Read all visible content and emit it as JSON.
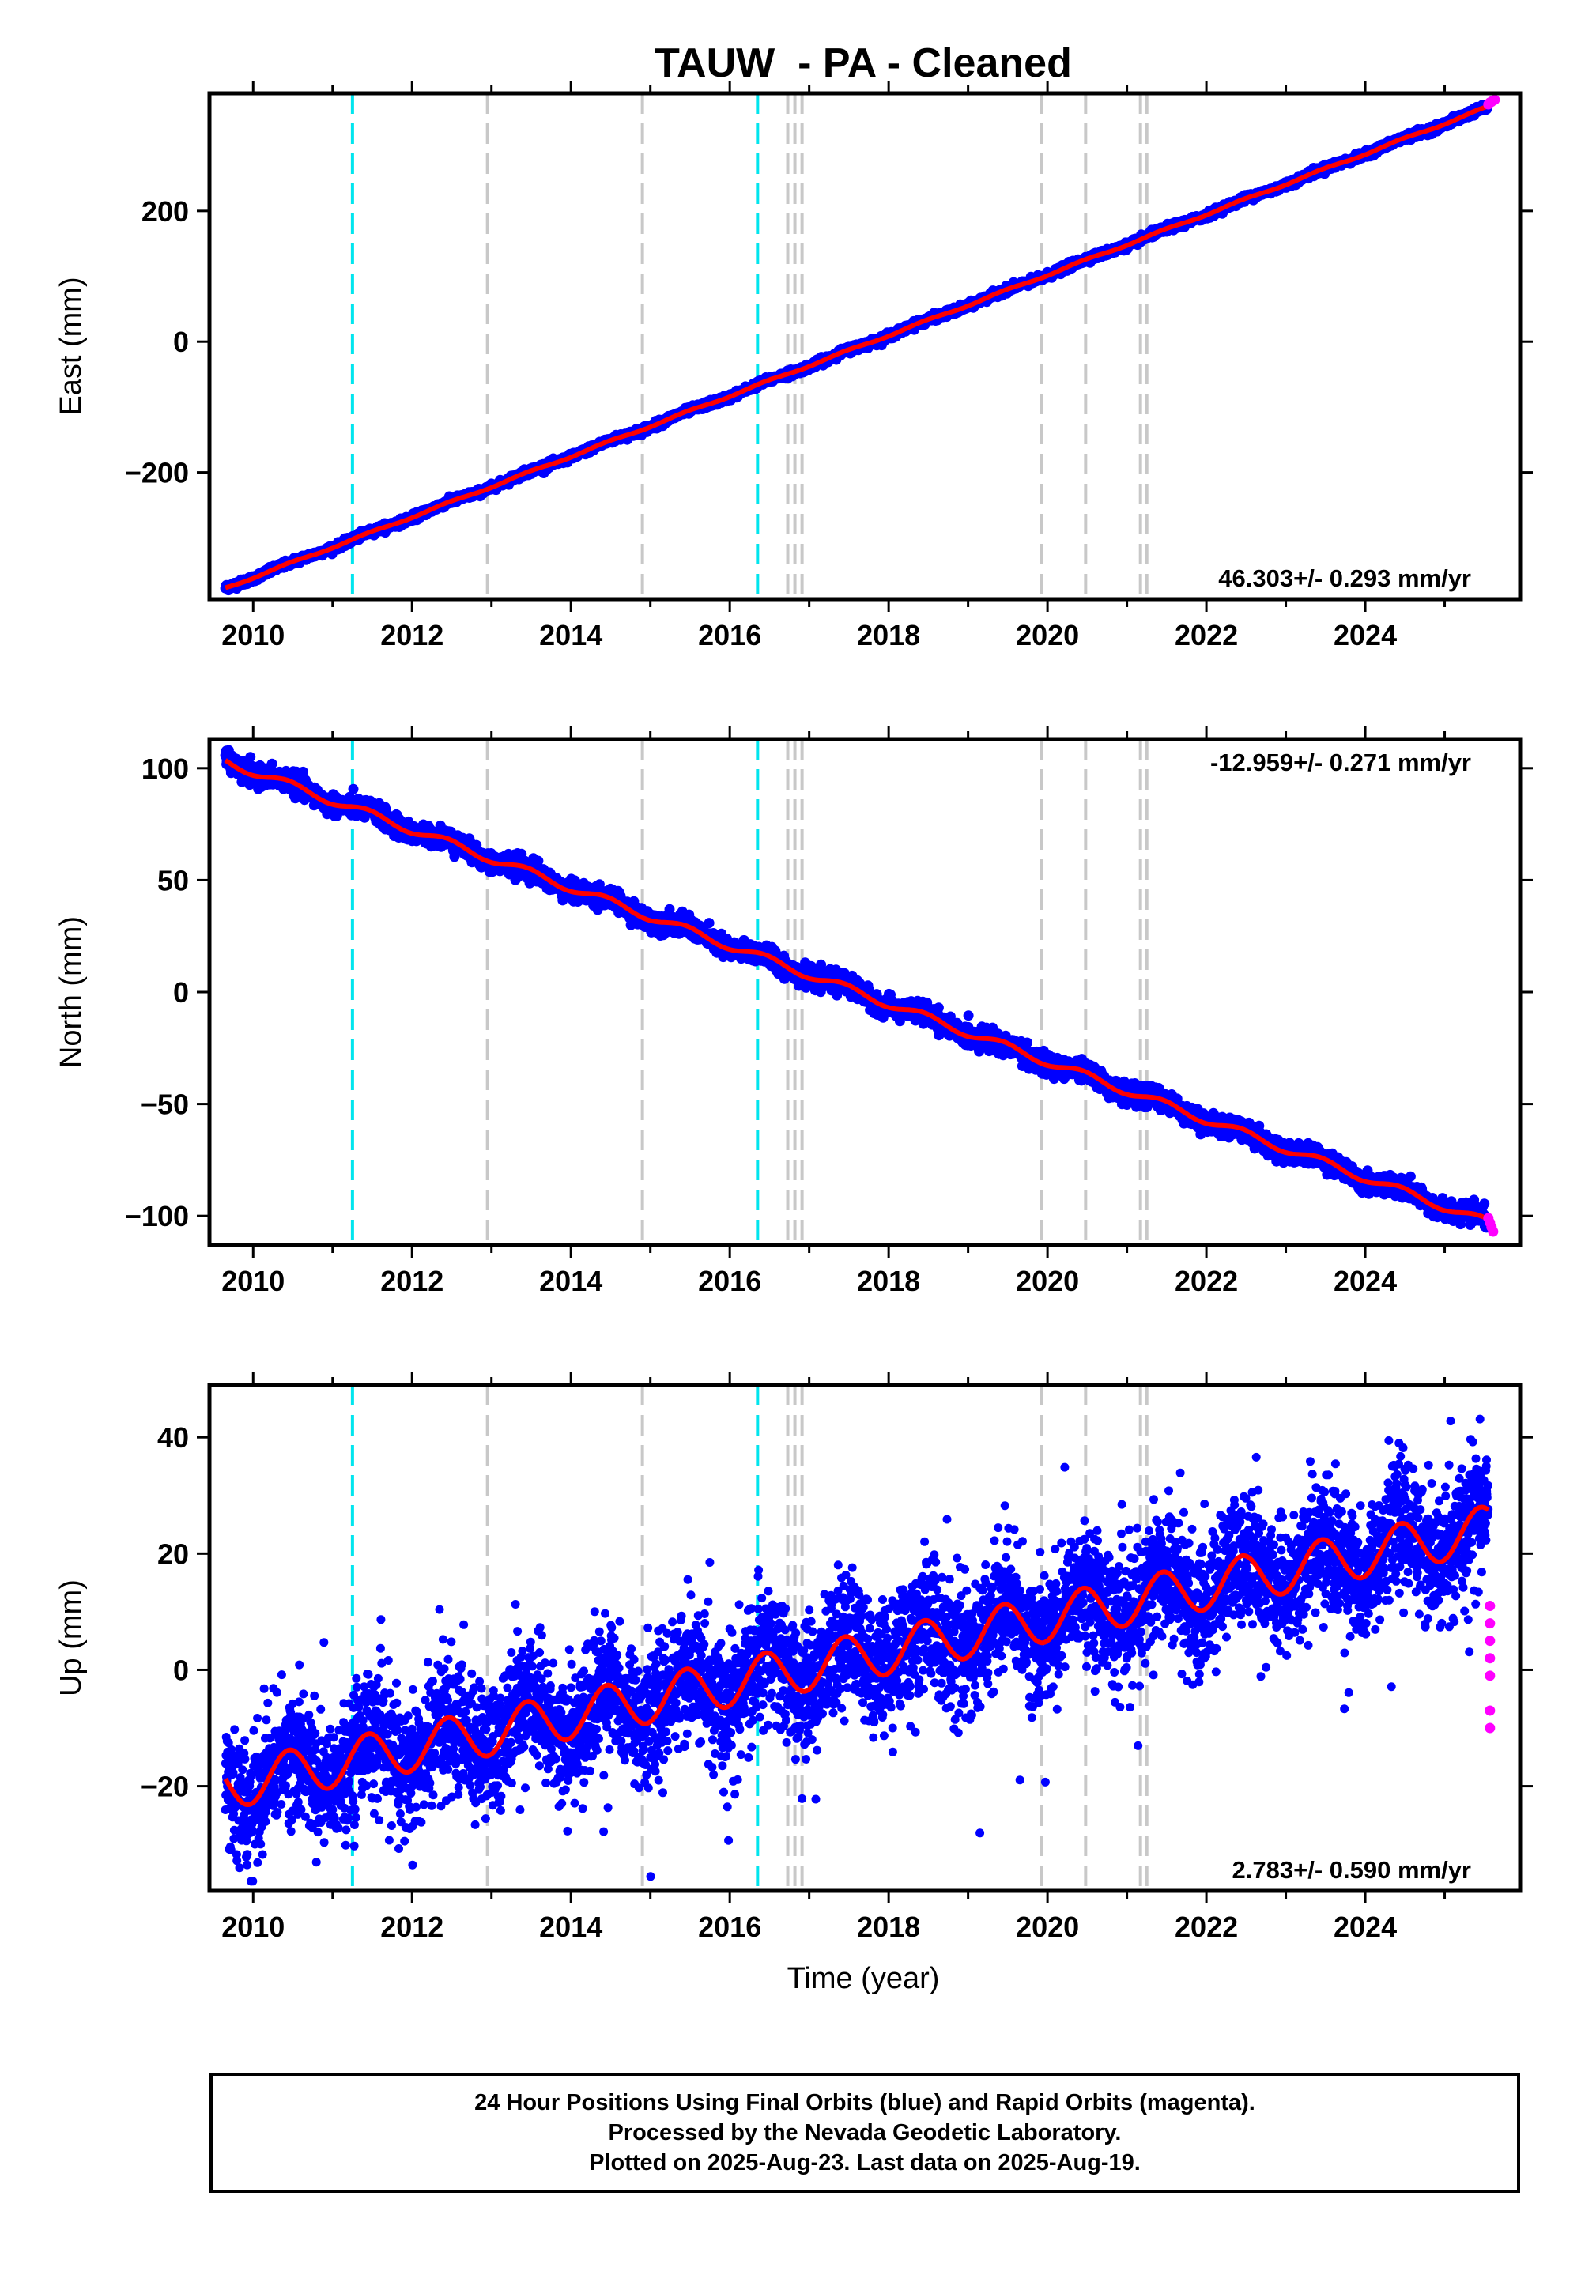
{
  "title": "TAUW  - PA - Cleaned",
  "x_axis_title": "Time (year)",
  "footer": {
    "line1": "24 Hour Positions Using Final Orbits (blue) and Rapid Orbits (magenta).",
    "line2": "Processed by the Nevada Geodetic Laboratory.",
    "line3": "Plotted on 2025-Aug-23. Last data on 2025-Aug-19."
  },
  "colors": {
    "final_orbits": "#0000ff",
    "rapid_orbits": "#ff00ff",
    "model_fit": "#ff0000",
    "antenna_change_lines": "#00e5ee",
    "event_lines": "#c8c8c8"
  },
  "chart_data": [
    {
      "type": "scatter",
      "ylabel": "East (mm)",
      "xlabel": "",
      "xlim": [
        2009.45,
        2025.95
      ],
      "ylim": [
        -394,
        380
      ],
      "x_ticks": [
        2010,
        2012,
        2014,
        2016,
        2018,
        2020,
        2022,
        2024
      ],
      "y_ticks": [
        -200,
        0,
        200
      ],
      "rate_annotation": "46.303+/- 0.293 mm/yr",
      "rate_position": "bottom-right",
      "fit": {
        "start_year": 2009.65,
        "start_value": -377,
        "rate": 46.303,
        "seasonal_amplitude": 1.5,
        "noise": 2.5
      },
      "rapid": {
        "x": [
          2025.55,
          2025.57,
          2025.59,
          2025.61,
          2025.63
        ],
        "y": [
          363,
          366,
          367,
          369,
          370
        ]
      },
      "grid": false
    },
    {
      "type": "scatter",
      "ylabel": "North (mm)",
      "xlabel": "",
      "xlim": [
        2009.45,
        2025.95
      ],
      "ylim": [
        -113,
        113
      ],
      "x_ticks": [
        2010,
        2012,
        2014,
        2016,
        2018,
        2020,
        2022,
        2024
      ],
      "y_ticks": [
        -100,
        -50,
        0,
        50,
        100
      ],
      "rate_annotation": "-12.959+/- 0.271 mm/yr",
      "rate_position": "top-right",
      "fit": {
        "start_year": 2009.65,
        "start_value": 103,
        "rate": -12.959,
        "seasonal_amplitude": 1.8,
        "noise": 2.2
      },
      "rapid": {
        "x": [
          2025.55,
          2025.57,
          2025.59,
          2025.61
        ],
        "y": [
          -101,
          -103,
          -105,
          -107
        ]
      },
      "grid": false
    },
    {
      "type": "scatter",
      "ylabel": "Up (mm)",
      "xlabel": "Time (year)",
      "xlim": [
        2009.45,
        2025.95
      ],
      "ylim": [
        -38,
        49
      ],
      "x_ticks": [
        2010,
        2012,
        2014,
        2016,
        2018,
        2020,
        2022,
        2024
      ],
      "y_ticks": [
        -20,
        0,
        20,
        40
      ],
      "rate_annotation": "2.783+/- 0.590 mm/yr",
      "rate_position": "bottom-right",
      "fit": {
        "start_year": 2009.65,
        "start_value": -20,
        "rate": 2.783,
        "seasonal_amplitude": 4,
        "noise": 5.5
      },
      "rapid": {
        "x": [
          2025.57,
          2025.57,
          2025.57,
          2025.57,
          2025.57,
          2025.57,
          2025.57
        ],
        "y": [
          11,
          8,
          5,
          2,
          -1,
          -7,
          -10
        ]
      },
      "grid": false
    }
  ],
  "vertical_lines": {
    "antenna_changes": [
      2011.25,
      2016.35
    ],
    "events": [
      2012.95,
      2014.9,
      2016.73,
      2016.82,
      2016.91,
      2019.92,
      2020.48,
      2021.17,
      2021.25
    ]
  }
}
